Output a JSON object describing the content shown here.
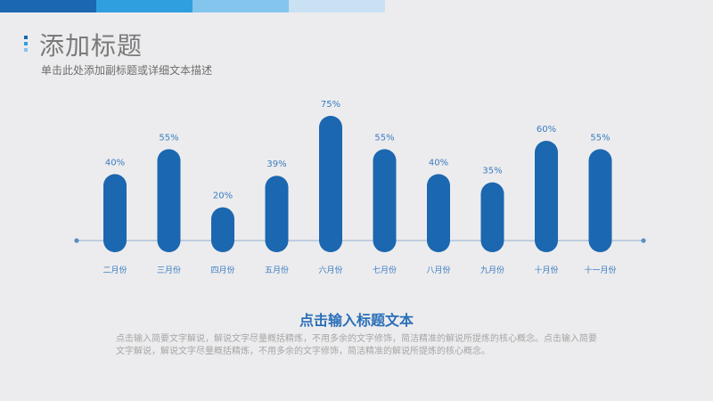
{
  "header": {
    "bar_colors": [
      "#1b67b0",
      "#2f9fe0",
      "#84c5ee",
      "#c9e1f2"
    ],
    "dot_colors": [
      "#1b67b0",
      "#2f9fe0",
      "#84c5ee"
    ],
    "title": "添加标题",
    "subtitle": "单击此处添加副标题或详细文本描述"
  },
  "chart_data": {
    "type": "bar",
    "title": "",
    "xlabel": "",
    "ylabel": "",
    "ylim": [
      0,
      80
    ],
    "categories": [
      "二月份",
      "三月份",
      "四月份",
      "五月份",
      "六月份",
      "七月份",
      "八月份",
      "九月份",
      "十月份",
      "十一月份"
    ],
    "values": [
      40,
      55,
      20,
      39,
      75,
      55,
      40,
      35,
      60,
      55
    ],
    "value_labels": [
      "40%",
      "55%",
      "20%",
      "39%",
      "75%",
      "55%",
      "40%",
      "35%",
      "60%",
      "55%"
    ],
    "bar_color": "#1b67b0",
    "grid": false,
    "legend": "none"
  },
  "footer": {
    "heading": "点击输入标题文本",
    "body": "点击输入简要文字解说，解说文字尽量概括精炼，不用多余的文字修饰，简洁精准的解说所提炼的核心概念。点击输入简要文字解说，解说文字尽量概括精炼，不用多余的文字修饰，简洁精准的解说所提炼的核心概念。"
  }
}
